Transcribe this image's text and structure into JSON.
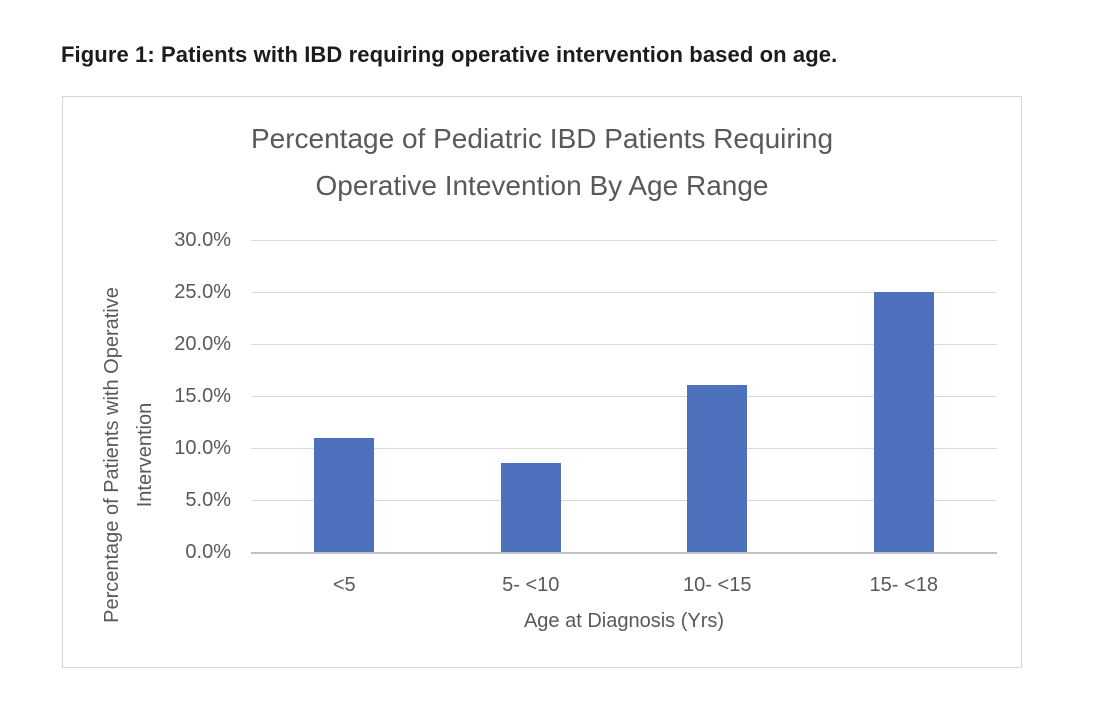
{
  "figure": {
    "caption": "Figure 1: Patients with IBD requiring operative intervention based on age."
  },
  "chart": {
    "title_lines": [
      "Percentage of Pediatric IBD Patients Requiring",
      "Operative Intevention By Age Range"
    ],
    "y_axis_title_lines": [
      "Percentage of Patients with Operative",
      "Intervention"
    ],
    "x_axis_title": "Age at Diagnosis (Yrs)",
    "colors": {
      "bar": "#4e71be",
      "gridline": "#d9d9d9",
      "axis_line": "#c3c3c3",
      "axis_text": "#595959",
      "caption_text": "#1c1c1c",
      "chart_border": "#d6d6d6"
    }
  },
  "chart_data": {
    "type": "bar",
    "title": "Percentage of Pediatric IBD Patients Requiring Operative Intevention By Age Range",
    "categories": [
      "<5",
      "5- <10",
      "10- <15",
      "15- <18"
    ],
    "values": [
      11.0,
      8.6,
      16.1,
      25.0
    ],
    "value_unit": "%",
    "xlabel": "Age at Diagnosis (Yrs)",
    "ylabel": "Percentage of Patients with Operative Intervention",
    "ylim": [
      0,
      30
    ],
    "ytick_step": 5,
    "ytick_labels": [
      "0.0%",
      "5.0%",
      "10.0%",
      "15.0%",
      "20.0%",
      "25.0%",
      "30.0%"
    ],
    "grid": true,
    "legend": false,
    "bar_color": "#4e71be"
  }
}
